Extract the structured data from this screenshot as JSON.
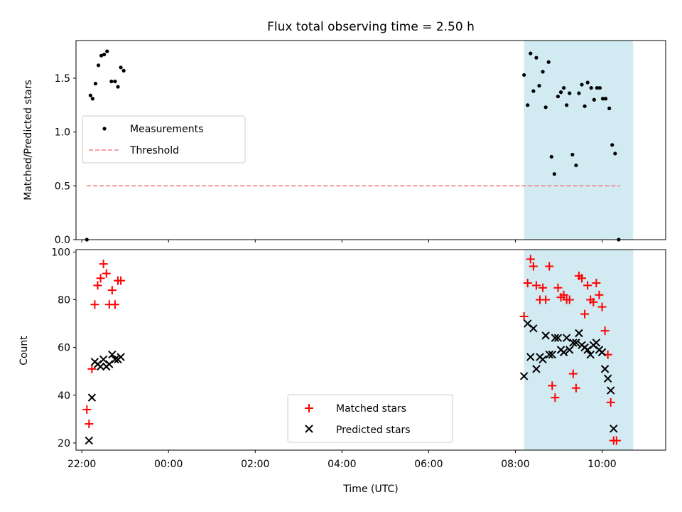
{
  "title": "Flux total observing time = 2.50 h",
  "colors": {
    "measurement": "#000000",
    "threshold": "#f08080",
    "matched": "#ff0000",
    "predicted": "#000000",
    "shade": "#add8e6"
  },
  "chart_data": [
    {
      "type": "scatter",
      "panel": "top",
      "ylabel": "Matched/Predicted stars",
      "ylim": [
        0,
        1.85
      ],
      "yticks": [
        {
          "v": 0,
          "label": "0.0"
        },
        {
          "v": 0.5,
          "label": "0.5"
        },
        {
          "v": 1.0,
          "label": "1.0"
        },
        {
          "v": 1.5,
          "label": "1.5"
        }
      ],
      "xlim": [
        "21:52",
        "11:28"
      ],
      "shaded_interval": [
        "08:12",
        "10:43"
      ],
      "legend_placement": "center-left",
      "series": [
        {
          "name": "Measurements",
          "marker": "dot",
          "points": [
            [
              "22:07",
              0.0
            ],
            [
              "22:12",
              1.34
            ],
            [
              "22:15",
              1.31
            ],
            [
              "22:19",
              1.45
            ],
            [
              "22:23",
              1.62
            ],
            [
              "22:27",
              1.71
            ],
            [
              "22:31",
              1.72
            ],
            [
              "22:35",
              1.75
            ],
            [
              "22:41",
              1.47
            ],
            [
              "22:46",
              1.47
            ],
            [
              "22:50",
              1.42
            ],
            [
              "22:54",
              1.6
            ],
            [
              "22:58",
              1.57
            ],
            [
              "08:12",
              1.53
            ],
            [
              "08:17",
              1.25
            ],
            [
              "08:21",
              1.73
            ],
            [
              "08:25",
              1.38
            ],
            [
              "08:29",
              1.69
            ],
            [
              "08:33",
              1.43
            ],
            [
              "08:38",
              1.56
            ],
            [
              "08:42",
              1.23
            ],
            [
              "08:46",
              1.65
            ],
            [
              "08:50",
              0.77
            ],
            [
              "08:54",
              0.61
            ],
            [
              "08:59",
              1.33
            ],
            [
              "09:03",
              1.37
            ],
            [
              "09:07",
              1.41
            ],
            [
              "09:11",
              1.25
            ],
            [
              "09:15",
              1.36
            ],
            [
              "09:19",
              0.79
            ],
            [
              "09:24",
              0.69
            ],
            [
              "09:28",
              1.36
            ],
            [
              "09:32",
              1.44
            ],
            [
              "09:36",
              1.24
            ],
            [
              "09:40",
              1.46
            ],
            [
              "09:45",
              1.41
            ],
            [
              "09:49",
              1.3
            ],
            [
              "09:53",
              1.41
            ],
            [
              "09:57",
              1.41
            ],
            [
              "10:01",
              1.31
            ],
            [
              "10:05",
              1.31
            ],
            [
              "10:10",
              1.22
            ],
            [
              "10:14",
              0.88
            ],
            [
              "10:18",
              0.8
            ],
            [
              "10:23",
              0.0
            ]
          ]
        },
        {
          "name": "Threshold",
          "marker": "dashed-line",
          "points": [
            [
              "22:07",
              0.5
            ],
            [
              "10:25",
              0.5
            ]
          ]
        }
      ]
    },
    {
      "type": "scatter",
      "panel": "bottom",
      "xlabel": "Time (UTC)",
      "ylabel": "Count",
      "ylim": [
        17,
        101
      ],
      "yticks": [
        {
          "v": 20,
          "label": "20"
        },
        {
          "v": 40,
          "label": "40"
        },
        {
          "v": 60,
          "label": "60"
        },
        {
          "v": 80,
          "label": "80"
        },
        {
          "v": 100,
          "label": "100"
        }
      ],
      "xlim": [
        "21:52",
        "11:28"
      ],
      "xticks": [
        "22:00",
        "00:00",
        "02:00",
        "04:00",
        "06:00",
        "08:00",
        "10:00"
      ],
      "shaded_interval": [
        "08:12",
        "10:43"
      ],
      "legend_placement": "lower-center",
      "series": [
        {
          "name": "Matched stars",
          "marker": "plus",
          "points": [
            [
              "22:07",
              34
            ],
            [
              "22:10",
              28
            ],
            [
              "22:14",
              51
            ],
            [
              "22:18",
              78
            ],
            [
              "22:22",
              86
            ],
            [
              "22:26",
              89
            ],
            [
              "22:30",
              95
            ],
            [
              "22:34",
              91
            ],
            [
              "22:38",
              78
            ],
            [
              "22:42",
              84
            ],
            [
              "22:46",
              78
            ],
            [
              "22:50",
              88
            ],
            [
              "22:54",
              88
            ],
            [
              "08:12",
              73
            ],
            [
              "08:17",
              87
            ],
            [
              "08:21",
              97
            ],
            [
              "08:25",
              94
            ],
            [
              "08:29",
              86
            ],
            [
              "08:34",
              80
            ],
            [
              "08:38",
              85
            ],
            [
              "08:42",
              80
            ],
            [
              "08:47",
              94
            ],
            [
              "08:51",
              44
            ],
            [
              "08:55",
              39
            ],
            [
              "08:59",
              85
            ],
            [
              "09:03",
              81
            ],
            [
              "09:07",
              82
            ],
            [
              "09:11",
              80
            ],
            [
              "09:15",
              80
            ],
            [
              "09:20",
              49
            ],
            [
              "09:24",
              43
            ],
            [
              "09:28",
              90
            ],
            [
              "09:32",
              89
            ],
            [
              "09:36",
              74
            ],
            [
              "09:40",
              86
            ],
            [
              "09:44",
              80
            ],
            [
              "09:48",
              79
            ],
            [
              "09:52",
              87
            ],
            [
              "09:56",
              82
            ],
            [
              "10:00",
              77
            ],
            [
              "10:04",
              67
            ],
            [
              "10:08",
              57
            ],
            [
              "10:12",
              37
            ],
            [
              "10:16",
              21
            ],
            [
              "10:20",
              21
            ]
          ]
        },
        {
          "name": "Predicted stars",
          "marker": "x",
          "points": [
            [
              "22:10",
              21
            ],
            [
              "22:14",
              39
            ],
            [
              "22:18",
              54
            ],
            [
              "22:22",
              53
            ],
            [
              "22:26",
              52
            ],
            [
              "22:30",
              55
            ],
            [
              "22:34",
              52
            ],
            [
              "22:38",
              53
            ],
            [
              "22:42",
              57
            ],
            [
              "22:46",
              55
            ],
            [
              "22:50",
              55
            ],
            [
              "22:54",
              56
            ],
            [
              "08:12",
              48
            ],
            [
              "08:17",
              70
            ],
            [
              "08:21",
              56
            ],
            [
              "08:25",
              68
            ],
            [
              "08:29",
              51
            ],
            [
              "08:34",
              56
            ],
            [
              "08:38",
              55
            ],
            [
              "08:42",
              65
            ],
            [
              "08:47",
              57
            ],
            [
              "08:51",
              57
            ],
            [
              "08:55",
              64
            ],
            [
              "08:59",
              64
            ],
            [
              "09:03",
              59
            ],
            [
              "09:07",
              58
            ],
            [
              "09:11",
              64
            ],
            [
              "09:15",
              59
            ],
            [
              "09:20",
              62
            ],
            [
              "09:24",
              62
            ],
            [
              "09:28",
              66
            ],
            [
              "09:32",
              61
            ],
            [
              "09:36",
              60
            ],
            [
              "09:40",
              59
            ],
            [
              "09:44",
              57
            ],
            [
              "09:48",
              61
            ],
            [
              "09:52",
              62
            ],
            [
              "09:56",
              59
            ],
            [
              "10:00",
              58
            ],
            [
              "10:04",
              51
            ],
            [
              "10:08",
              47
            ],
            [
              "10:12",
              42
            ],
            [
              "10:16",
              26
            ]
          ]
        }
      ]
    }
  ]
}
